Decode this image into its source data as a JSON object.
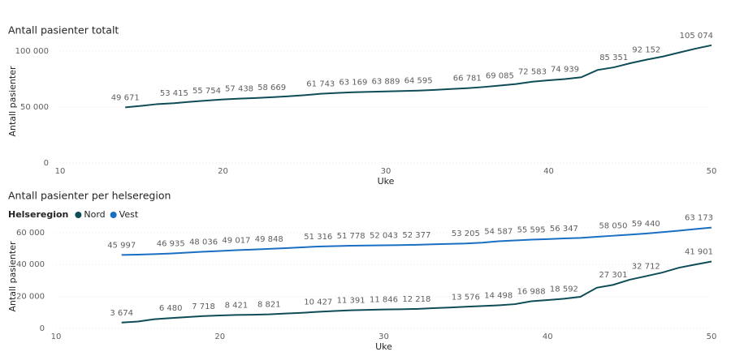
{
  "chart_data": [
    {
      "type": "line",
      "title": "Antall pasienter totalt",
      "x_label": "Uke",
      "y_label": "Antall pasienter",
      "color": "#0e4d57",
      "x": [
        14,
        15,
        16,
        17,
        18,
        19,
        20,
        21,
        22,
        23,
        24,
        25,
        26,
        27,
        28,
        29,
        30,
        31,
        32,
        33,
        34,
        35,
        36,
        37,
        38,
        39,
        40,
        41,
        42,
        43,
        44,
        45,
        46,
        47,
        48,
        49,
        50
      ],
      "values": [
        49671,
        51000,
        52600,
        53415,
        54600,
        55754,
        56700,
        57438,
        58000,
        58669,
        59500,
        60500,
        61743,
        62500,
        63169,
        63500,
        63889,
        64200,
        64595,
        65200,
        66000,
        66781,
        67800,
        69085,
        70500,
        72583,
        73800,
        74939,
        76500,
        83000,
        85351,
        89000,
        92152,
        95000,
        98500,
        102000,
        105074
      ],
      "value_labels": [
        "49 671",
        null,
        null,
        "53 415",
        null,
        "55 754",
        null,
        "57 438",
        null,
        "58 669",
        null,
        null,
        "61 743",
        null,
        "63 169",
        null,
        "63 889",
        null,
        "64 595",
        null,
        null,
        "66 781",
        null,
        "69 085",
        null,
        "72 583",
        null,
        "74 939",
        null,
        null,
        "85 351",
        null,
        "92 152",
        null,
        null,
        null,
        "105 074"
      ],
      "xlim": [
        10,
        50
      ],
      "xticks": [
        10,
        20,
        30,
        40,
        50
      ],
      "ylim": [
        0,
        110000
      ],
      "yticks": [
        0,
        {
          "value": 50000,
          "label": "50 000"
        },
        {
          "value": 100000,
          "label": "100 000"
        }
      ],
      "grid": true
    },
    {
      "type": "line",
      "title": "Antall pasienter per helseregion",
      "x_label": "Uke",
      "y_label": "Antall pasienter",
      "legend_title": "Helseregion",
      "x": [
        14,
        15,
        16,
        17,
        18,
        19,
        20,
        21,
        22,
        23,
        24,
        25,
        26,
        27,
        28,
        29,
        30,
        31,
        32,
        33,
        34,
        35,
        36,
        37,
        38,
        39,
        40,
        41,
        42,
        43,
        44,
        45,
        46,
        47,
        48,
        49,
        50
      ],
      "series": [
        {
          "name": "Nord",
          "color": "#0e4d57",
          "values": [
            3674,
            4300,
            5800,
            6480,
            7100,
            7718,
            8100,
            8421,
            8600,
            8821,
            9300,
            9800,
            10427,
            10900,
            11391,
            11600,
            11846,
            12000,
            12218,
            12700,
            13100,
            13576,
            14000,
            14498,
            15200,
            16988,
            17800,
            18592,
            19800,
            25500,
            27301,
            30500,
            32712,
            35000,
            38000,
            40000,
            41901
          ],
          "value_labels": [
            "3 674",
            null,
            null,
            "6 480",
            null,
            "7 718",
            null,
            "8 421",
            null,
            "8 821",
            null,
            null,
            "10 427",
            null,
            "11 391",
            null,
            "11 846",
            null,
            "12 218",
            null,
            null,
            "13 576",
            null,
            "14 498",
            null,
            "16 988",
            null,
            "18 592",
            null,
            null,
            "27 301",
            null,
            "32 712",
            null,
            null,
            null,
            "41 901"
          ]
        },
        {
          "name": "Vest",
          "color": "#1a6fc4",
          "values": [
            45997,
            46200,
            46500,
            46935,
            47500,
            48036,
            48500,
            49017,
            49400,
            49848,
            50300,
            50800,
            51316,
            51550,
            51778,
            51900,
            52043,
            52200,
            52377,
            52700,
            52950,
            53205,
            53700,
            54587,
            55100,
            55595,
            55950,
            56347,
            56700,
            57400,
            58050,
            58700,
            59440,
            60300,
            61200,
            62200,
            63173
          ],
          "value_labels": [
            "45 997",
            null,
            null,
            "46 935",
            null,
            "48 036",
            null,
            "49 017",
            null,
            "49 848",
            null,
            null,
            "51 316",
            null,
            "51 778",
            null,
            "52 043",
            null,
            "52 377",
            null,
            null,
            "53 205",
            null,
            "54 587",
            null,
            "55 595",
            null,
            "56 347",
            null,
            null,
            "58 050",
            null,
            "59 440",
            null,
            null,
            null,
            "63 173"
          ]
        }
      ],
      "xlim": [
        10,
        50
      ],
      "xticks": [
        10,
        20,
        30,
        40,
        50
      ],
      "ylim": [
        0,
        65000
      ],
      "yticks": [
        0,
        {
          "value": 20000,
          "label": "20 000"
        },
        {
          "value": 40000,
          "label": "40 000"
        },
        {
          "value": 60000,
          "label": "60 000"
        }
      ],
      "grid": true
    }
  ]
}
